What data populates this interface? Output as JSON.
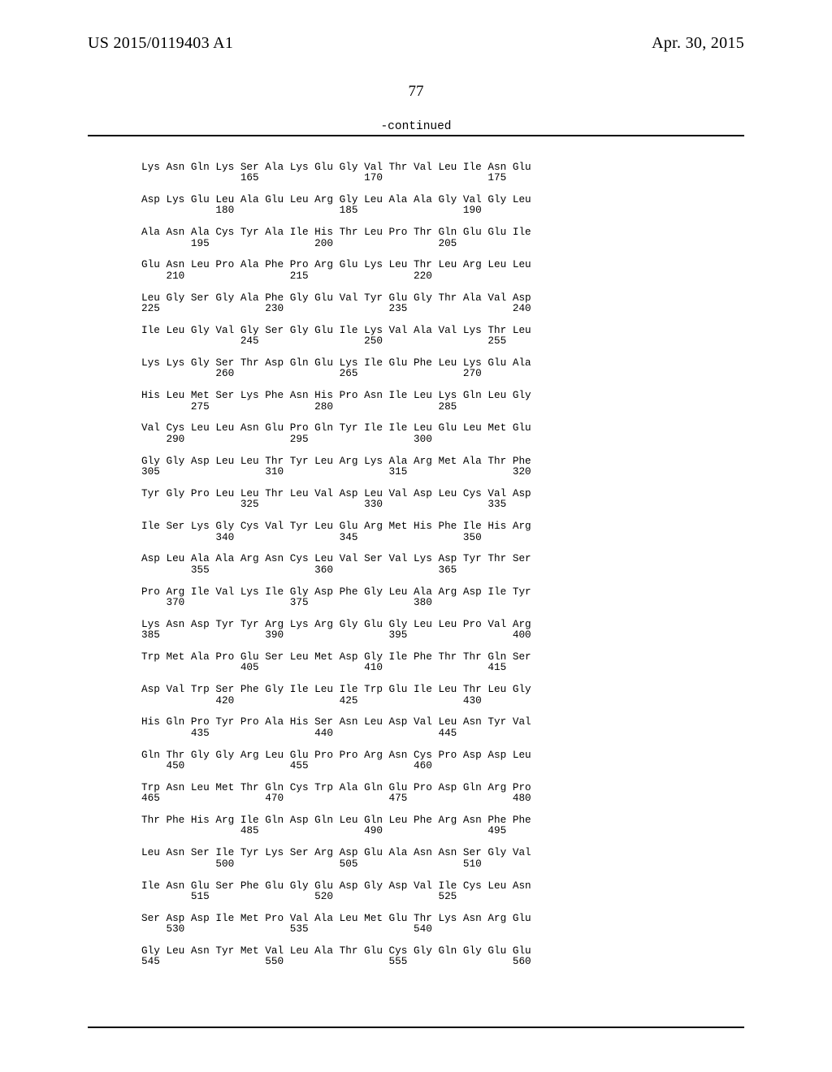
{
  "header": {
    "publication": "US 2015/0119403 A1",
    "date": "Apr. 30, 2015"
  },
  "page_number": "77",
  "continued_label": "-continued",
  "sequence": {
    "font_family": "Courier New",
    "font_size_pt": 9.5,
    "text_color": "#000000",
    "background_color": "#ffffff",
    "rows": [
      {
        "aa": "Lys Asn Gln Lys Ser Ala Lys Glu Gly Val Thr Val Leu Ile Asn Glu",
        "nums": [
          null,
          null,
          null,
          null,
          165,
          null,
          null,
          null,
          null,
          170,
          null,
          null,
          null,
          null,
          175,
          null
        ]
      },
      {
        "aa": "Asp Lys Glu Leu Ala Glu Leu Arg Gly Leu Ala Ala Gly Val Gly Leu",
        "nums": [
          null,
          null,
          null,
          180,
          null,
          null,
          null,
          null,
          185,
          null,
          null,
          null,
          null,
          190,
          null,
          null
        ]
      },
      {
        "aa": "Ala Asn Ala Cys Tyr Ala Ile His Thr Leu Pro Thr Gln Glu Glu Ile",
        "nums": [
          null,
          null,
          195,
          null,
          null,
          null,
          null,
          200,
          null,
          null,
          null,
          null,
          205,
          null,
          null,
          null
        ]
      },
      {
        "aa": "Glu Asn Leu Pro Ala Phe Pro Arg Glu Lys Leu Thr Leu Arg Leu Leu",
        "nums": [
          null,
          210,
          null,
          null,
          null,
          null,
          215,
          null,
          null,
          null,
          null,
          220,
          null,
          null,
          null,
          null
        ]
      },
      {
        "aa": "Leu Gly Ser Gly Ala Phe Gly Glu Val Tyr Glu Gly Thr Ala Val Asp",
        "nums": [
          225,
          null,
          null,
          null,
          null,
          230,
          null,
          null,
          null,
          null,
          235,
          null,
          null,
          null,
          null,
          240
        ]
      },
      {
        "aa": "Ile Leu Gly Val Gly Ser Gly Glu Ile Lys Val Ala Val Lys Thr Leu",
        "nums": [
          null,
          null,
          null,
          null,
          245,
          null,
          null,
          null,
          null,
          250,
          null,
          null,
          null,
          null,
          255,
          null
        ]
      },
      {
        "aa": "Lys Lys Gly Ser Thr Asp Gln Glu Lys Ile Glu Phe Leu Lys Glu Ala",
        "nums": [
          null,
          null,
          null,
          260,
          null,
          null,
          null,
          null,
          265,
          null,
          null,
          null,
          null,
          270,
          null,
          null
        ]
      },
      {
        "aa": "His Leu Met Ser Lys Phe Asn His Pro Asn Ile Leu Lys Gln Leu Gly",
        "nums": [
          null,
          null,
          275,
          null,
          null,
          null,
          null,
          280,
          null,
          null,
          null,
          null,
          285,
          null,
          null,
          null
        ]
      },
      {
        "aa": "Val Cys Leu Leu Asn Glu Pro Gln Tyr Ile Ile Leu Glu Leu Met Glu",
        "nums": [
          null,
          290,
          null,
          null,
          null,
          null,
          295,
          null,
          null,
          null,
          null,
          300,
          null,
          null,
          null,
          null
        ]
      },
      {
        "aa": "Gly Gly Asp Leu Leu Thr Tyr Leu Arg Lys Ala Arg Met Ala Thr Phe",
        "nums": [
          305,
          null,
          null,
          null,
          null,
          310,
          null,
          null,
          null,
          null,
          315,
          null,
          null,
          null,
          null,
          320
        ]
      },
      {
        "aa": "Tyr Gly Pro Leu Leu Thr Leu Val Asp Leu Val Asp Leu Cys Val Asp",
        "nums": [
          null,
          null,
          null,
          null,
          325,
          null,
          null,
          null,
          null,
          330,
          null,
          null,
          null,
          null,
          335,
          null
        ]
      },
      {
        "aa": "Ile Ser Lys Gly Cys Val Tyr Leu Glu Arg Met His Phe Ile His Arg",
        "nums": [
          null,
          null,
          null,
          340,
          null,
          null,
          null,
          null,
          345,
          null,
          null,
          null,
          null,
          350,
          null,
          null
        ]
      },
      {
        "aa": "Asp Leu Ala Ala Arg Asn Cys Leu Val Ser Val Lys Asp Tyr Thr Ser",
        "nums": [
          null,
          null,
          355,
          null,
          null,
          null,
          null,
          360,
          null,
          null,
          null,
          null,
          365,
          null,
          null,
          null
        ]
      },
      {
        "aa": "Pro Arg Ile Val Lys Ile Gly Asp Phe Gly Leu Ala Arg Asp Ile Tyr",
        "nums": [
          null,
          370,
          null,
          null,
          null,
          null,
          375,
          null,
          null,
          null,
          null,
          380,
          null,
          null,
          null,
          null
        ]
      },
      {
        "aa": "Lys Asn Asp Tyr Tyr Arg Lys Arg Gly Glu Gly Leu Leu Pro Val Arg",
        "nums": [
          385,
          null,
          null,
          null,
          null,
          390,
          null,
          null,
          null,
          null,
          395,
          null,
          null,
          null,
          null,
          400
        ]
      },
      {
        "aa": "Trp Met Ala Pro Glu Ser Leu Met Asp Gly Ile Phe Thr Thr Gln Ser",
        "nums": [
          null,
          null,
          null,
          null,
          405,
          null,
          null,
          null,
          null,
          410,
          null,
          null,
          null,
          null,
          415,
          null
        ]
      },
      {
        "aa": "Asp Val Trp Ser Phe Gly Ile Leu Ile Trp Glu Ile Leu Thr Leu Gly",
        "nums": [
          null,
          null,
          null,
          420,
          null,
          null,
          null,
          null,
          425,
          null,
          null,
          null,
          null,
          430,
          null,
          null
        ]
      },
      {
        "aa": "His Gln Pro Tyr Pro Ala His Ser Asn Leu Asp Val Leu Asn Tyr Val",
        "nums": [
          null,
          null,
          435,
          null,
          null,
          null,
          null,
          440,
          null,
          null,
          null,
          null,
          445,
          null,
          null,
          null
        ]
      },
      {
        "aa": "Gln Thr Gly Gly Arg Leu Glu Pro Pro Arg Asn Cys Pro Asp Asp Leu",
        "nums": [
          null,
          450,
          null,
          null,
          null,
          null,
          455,
          null,
          null,
          null,
          null,
          460,
          null,
          null,
          null,
          null
        ]
      },
      {
        "aa": "Trp Asn Leu Met Thr Gln Cys Trp Ala Gln Glu Pro Asp Gln Arg Pro",
        "nums": [
          465,
          null,
          null,
          null,
          null,
          470,
          null,
          null,
          null,
          null,
          475,
          null,
          null,
          null,
          null,
          480
        ]
      },
      {
        "aa": "Thr Phe His Arg Ile Gln Asp Gln Leu Gln Leu Phe Arg Asn Phe Phe",
        "nums": [
          null,
          null,
          null,
          null,
          485,
          null,
          null,
          null,
          null,
          490,
          null,
          null,
          null,
          null,
          495,
          null
        ]
      },
      {
        "aa": "Leu Asn Ser Ile Tyr Lys Ser Arg Asp Glu Ala Asn Asn Ser Gly Val",
        "nums": [
          null,
          null,
          null,
          500,
          null,
          null,
          null,
          null,
          505,
          null,
          null,
          null,
          null,
          510,
          null,
          null
        ]
      },
      {
        "aa": "Ile Asn Glu Ser Phe Glu Gly Glu Asp Gly Asp Val Ile Cys Leu Asn",
        "nums": [
          null,
          null,
          515,
          null,
          null,
          null,
          null,
          520,
          null,
          null,
          null,
          null,
          525,
          null,
          null,
          null
        ]
      },
      {
        "aa": "Ser Asp Asp Ile Met Pro Val Ala Leu Met Glu Thr Lys Asn Arg Glu",
        "nums": [
          null,
          530,
          null,
          null,
          null,
          null,
          535,
          null,
          null,
          null,
          null,
          540,
          null,
          null,
          null,
          null
        ]
      },
      {
        "aa": "Gly Leu Asn Tyr Met Val Leu Ala Thr Glu Cys Gly Gln Gly Glu Glu",
        "nums": [
          545,
          null,
          null,
          null,
          null,
          550,
          null,
          null,
          null,
          null,
          555,
          null,
          null,
          null,
          null,
          560
        ]
      }
    ]
  }
}
